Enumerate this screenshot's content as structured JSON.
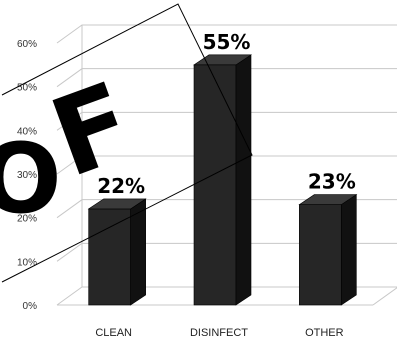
{
  "chart_data": {
    "type": "bar",
    "style": "3d-column",
    "categories": [
      "CLEAN",
      "DISINFECT",
      "OTHER"
    ],
    "values": [
      22,
      55,
      23
    ],
    "data_labels": [
      "22%",
      "55%",
      "23%"
    ],
    "y_ticks": [
      "0%",
      "10%",
      "20%",
      "30%",
      "40%",
      "50%",
      "60%"
    ],
    "ylim": [
      0,
      60
    ],
    "grid": true,
    "legend": "none",
    "colors": {
      "bar_front": "#262626",
      "bar_side": "#111111",
      "bar_top": "#3a3a3a",
      "grid": "#c8c8c8"
    }
  },
  "overlay": {
    "letters": [
      "O",
      "F"
    ]
  }
}
